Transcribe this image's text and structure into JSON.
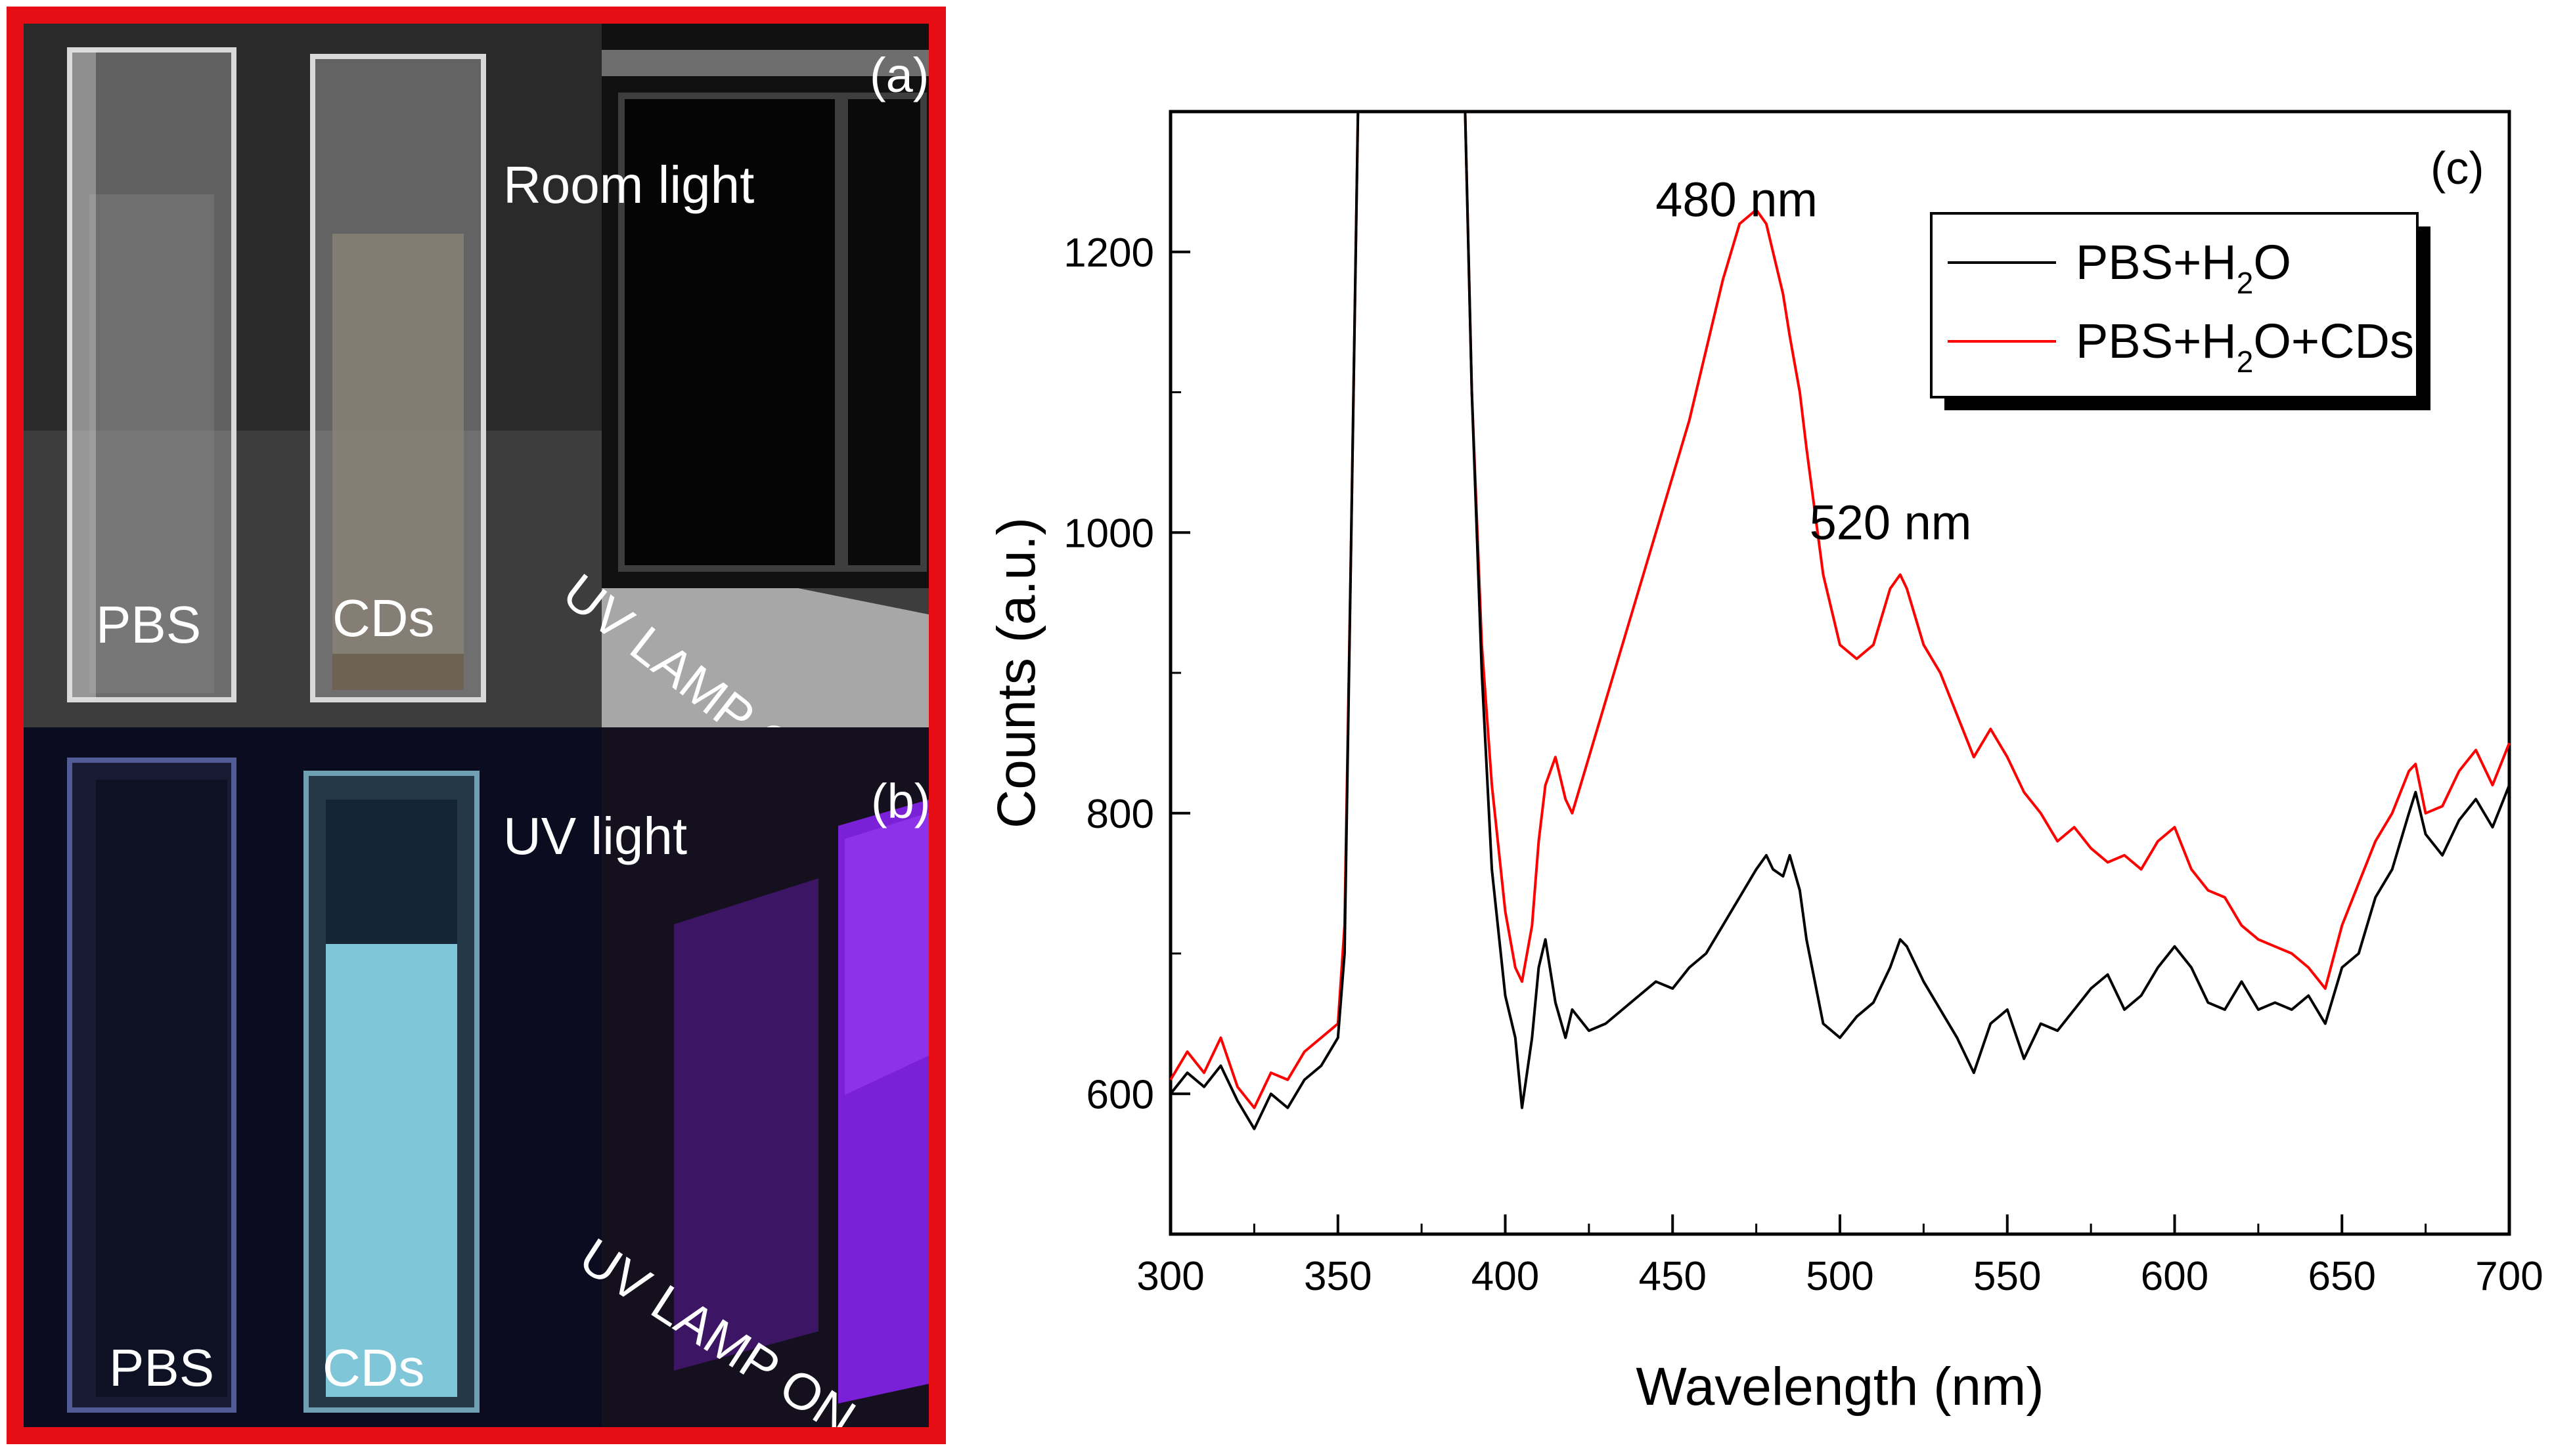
{
  "photos": {
    "top": {
      "panel_label": "(a)",
      "condition_label": "Room light",
      "lamp_label": "UV LAMP OFF",
      "cuvette_left_label": "PBS",
      "cuvette_right_label": "CDs"
    },
    "bottom": {
      "panel_label": "(b)",
      "condition_label": "UV light",
      "lamp_label": "UV LAMP ON",
      "cuvette_left_label": "PBS",
      "cuvette_right_label": "CDs"
    },
    "frame_color": "#e60d14"
  },
  "chart_data": {
    "type": "line",
    "panel_label": "(c)",
    "xlabel": "Wavelength (nm)",
    "ylabel": "Counts (a.u.)",
    "xlim": [
      300,
      700
    ],
    "ylim": [
      500,
      1300
    ],
    "xticks": [
      300,
      350,
      400,
      450,
      500,
      550,
      600,
      650,
      700
    ],
    "yticks": [
      600,
      800,
      1000,
      1200
    ],
    "annotations": [
      {
        "text": "480 nm",
        "x": 475,
        "y": 1230
      },
      {
        "text": "520 nm",
        "x": 521,
        "y": 1000
      }
    ],
    "legend": {
      "position": "top-right",
      "entries": [
        {
          "pre": "PBS+H",
          "sub": "2",
          "post": "O",
          "color": "#000000"
        },
        {
          "pre": "PBS+H",
          "sub": "2",
          "post": "O+CDs",
          "color": "#ff0000"
        }
      ]
    },
    "series": [
      {
        "name": "PBS+H2O",
        "color": "#000000",
        "x": [
          300,
          305,
          310,
          315,
          320,
          325,
          330,
          335,
          340,
          345,
          350,
          352,
          354,
          356,
          358,
          385,
          388,
          390,
          393,
          396,
          400,
          403,
          405,
          408,
          410,
          412,
          415,
          418,
          420,
          425,
          430,
          435,
          440,
          445,
          450,
          455,
          460,
          465,
          470,
          475,
          478,
          480,
          483,
          485,
          488,
          490,
          495,
          500,
          505,
          510,
          515,
          518,
          520,
          525,
          530,
          535,
          540,
          545,
          550,
          555,
          560,
          565,
          570,
          575,
          580,
          585,
          590,
          595,
          600,
          605,
          610,
          615,
          620,
          625,
          630,
          635,
          640,
          645,
          650,
          655,
          660,
          665,
          670,
          672,
          675,
          680,
          685,
          690,
          695,
          700
        ],
        "y": [
          600,
          615,
          605,
          620,
          595,
          575,
          600,
          590,
          610,
          620,
          640,
          700,
          1000,
          1320,
          1320,
          1320,
          1300,
          1100,
          900,
          760,
          670,
          640,
          590,
          640,
          690,
          710,
          665,
          640,
          660,
          645,
          650,
          660,
          670,
          680,
          675,
          690,
          700,
          720,
          740,
          760,
          770,
          760,
          755,
          770,
          745,
          710,
          650,
          640,
          655,
          665,
          690,
          710,
          705,
          680,
          660,
          640,
          615,
          650,
          660,
          625,
          650,
          645,
          660,
          675,
          685,
          660,
          670,
          690,
          705,
          690,
          665,
          660,
          680,
          660,
          665,
          660,
          670,
          650,
          690,
          700,
          740,
          760,
          800,
          815,
          785,
          770,
          795,
          810,
          790,
          820
        ]
      },
      {
        "name": "PBS+H2O+CDs",
        "color": "#ff0000",
        "x": [
          300,
          305,
          310,
          315,
          320,
          325,
          330,
          335,
          340,
          345,
          350,
          352,
          354,
          356,
          358,
          385,
          388,
          390,
          393,
          396,
          400,
          403,
          405,
          408,
          410,
          412,
          415,
          418,
          420,
          425,
          430,
          435,
          440,
          445,
          450,
          455,
          460,
          465,
          470,
          475,
          478,
          480,
          483,
          485,
          488,
          490,
          495,
          500,
          505,
          510,
          515,
          518,
          520,
          525,
          530,
          535,
          540,
          545,
          550,
          555,
          560,
          565,
          570,
          575,
          580,
          585,
          590,
          595,
          600,
          605,
          610,
          615,
          620,
          625,
          630,
          635,
          640,
          645,
          650,
          655,
          660,
          665,
          670,
          672,
          675,
          680,
          685,
          690,
          695,
          700
        ],
        "y": [
          610,
          630,
          615,
          640,
          605,
          590,
          615,
          610,
          630,
          640,
          650,
          720,
          1000,
          1320,
          1320,
          1320,
          1300,
          1100,
          920,
          820,
          730,
          690,
          680,
          720,
          780,
          820,
          840,
          810,
          800,
          840,
          880,
          920,
          960,
          1000,
          1040,
          1080,
          1130,
          1180,
          1220,
          1230,
          1220,
          1200,
          1170,
          1140,
          1100,
          1060,
          970,
          920,
          910,
          920,
          960,
          970,
          960,
          920,
          900,
          870,
          840,
          860,
          840,
          815,
          800,
          780,
          790,
          775,
          765,
          770,
          760,
          780,
          790,
          760,
          745,
          740,
          720,
          710,
          705,
          700,
          690,
          675,
          720,
          750,
          780,
          800,
          830,
          835,
          800,
          805,
          830,
          845,
          820,
          850
        ]
      }
    ]
  }
}
